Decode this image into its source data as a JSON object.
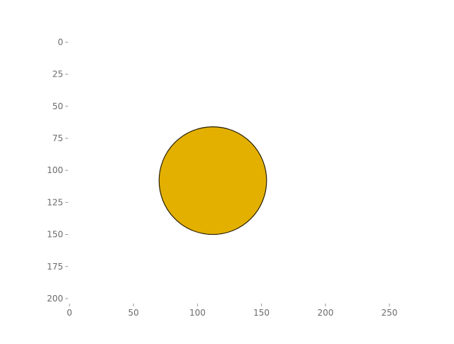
{
  "chart_data": {
    "type": "scatter",
    "title": "",
    "xlabel": "",
    "ylabel": "",
    "xlim": [
      0,
      255
    ],
    "ylim": [
      205,
      -3
    ],
    "y_axis_inverted": true,
    "grid": false,
    "legend": "none",
    "x_ticks": [
      {
        "value": 0,
        "label": "0"
      },
      {
        "value": 50,
        "label": "50"
      },
      {
        "value": 100,
        "label": "100"
      },
      {
        "value": 150,
        "label": "150"
      },
      {
        "value": 200,
        "label": "200"
      },
      {
        "value": 250,
        "label": "250"
      }
    ],
    "y_ticks": [
      {
        "value": 0,
        "label": "0"
      },
      {
        "value": 25,
        "label": "25"
      },
      {
        "value": 50,
        "label": "50"
      },
      {
        "value": 75,
        "label": "75"
      },
      {
        "value": 100,
        "label": "100"
      },
      {
        "value": 125,
        "label": "125"
      },
      {
        "value": 150,
        "label": "150"
      },
      {
        "value": 175,
        "label": "175"
      },
      {
        "value": 200,
        "label": "200"
      }
    ],
    "shapes": [
      {
        "kind": "circle",
        "center_x": 112,
        "center_y": 108,
        "radius": 42,
        "color": "#e3b000",
        "edge_color": "#2a2000"
      }
    ]
  }
}
